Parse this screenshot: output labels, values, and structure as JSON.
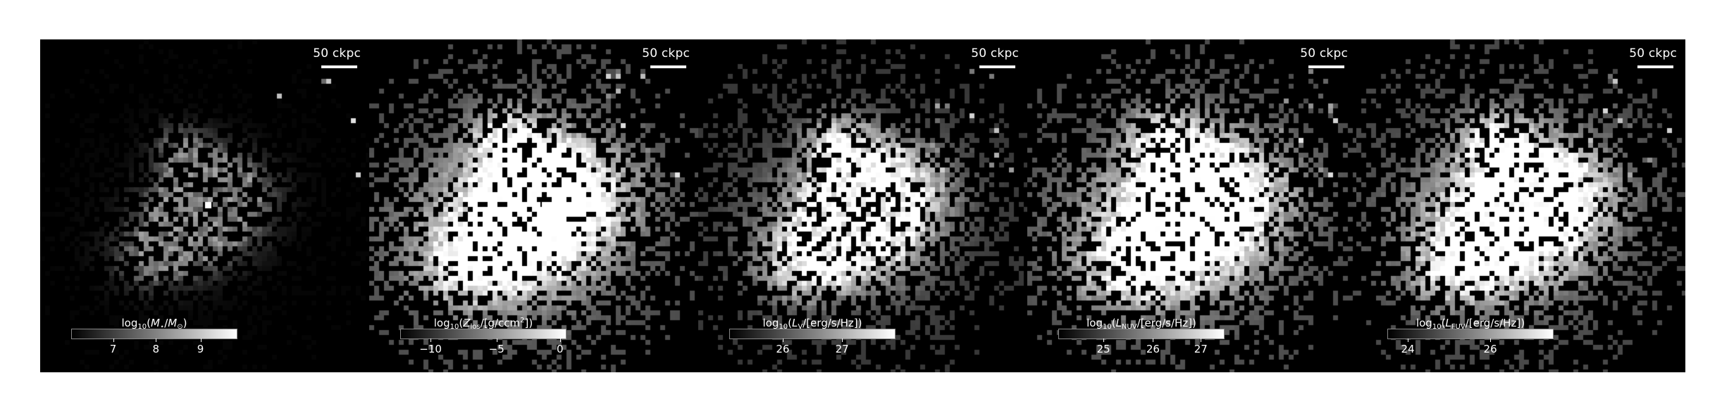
{
  "panels": [
    {
      "id": "stellar-mass",
      "scalebar_label": "50 ckpc",
      "colorbar": {
        "label_parts": [
          "log",
          "10",
          "(",
          "M",
          "⋆",
          "/",
          "M",
          "⊙",
          ")"
        ],
        "ticks": [
          {
            "value": "7",
            "frac": 0.25
          },
          {
            "value": "8",
            "frac": 0.51
          },
          {
            "value": "9",
            "frac": 0.78
          }
        ]
      }
    },
    {
      "id": "metallicity",
      "scalebar_label": "50 ckpc",
      "colorbar": {
        "label_parts": [
          "log",
          "10",
          "(",
          "Z",
          "los",
          "/[g/ccm",
          "2",
          "])"
        ],
        "ticks": [
          {
            "value": "−10",
            "frac": 0.18
          },
          {
            "value": "−5",
            "frac": 0.58
          },
          {
            "value": "0",
            "frac": 0.965
          }
        ]
      }
    },
    {
      "id": "lum-v",
      "scalebar_label": "50 ckpc",
      "colorbar": {
        "label_parts": [
          "log",
          "10",
          "(",
          "L",
          "V",
          "/[erg/s/Hz])"
        ],
        "ticks": [
          {
            "value": "26",
            "frac": 0.32
          },
          {
            "value": "27",
            "frac": 0.68
          }
        ]
      }
    },
    {
      "id": "lum-nuv",
      "scalebar_label": "50 ckpc",
      "colorbar": {
        "label_parts": [
          "log",
          "10",
          "(",
          "L",
          "NUV",
          "/[erg/s/Hz])"
        ],
        "ticks": [
          {
            "value": "25",
            "frac": 0.27
          },
          {
            "value": "26",
            "frac": 0.57
          },
          {
            "value": "27",
            "frac": 0.86
          }
        ]
      }
    },
    {
      "id": "lum-fuv",
      "scalebar_label": "50 ckpc",
      "colorbar": {
        "label_parts": [
          "log",
          "10",
          "(",
          "L",
          "FUV",
          "/[erg/s/Hz])"
        ],
        "ticks": [
          {
            "value": "24",
            "frac": 0.12
          },
          {
            "value": "26",
            "frac": 0.62
          }
        ]
      }
    }
  ]
}
